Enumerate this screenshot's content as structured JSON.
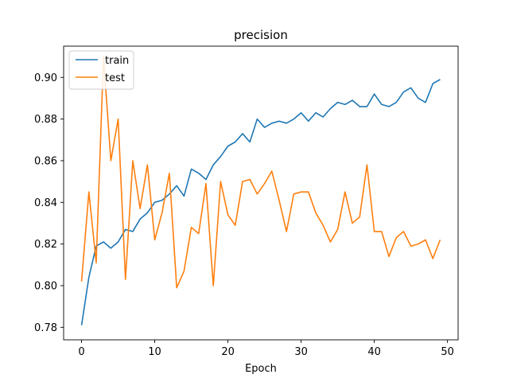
{
  "chart_data": {
    "type": "line",
    "title": "precision",
    "xlabel": "Epoch",
    "ylabel": "",
    "xlim": [
      -2.45,
      51.45
    ],
    "ylim": [
      0.774,
      0.915
    ],
    "xticks": [
      0,
      10,
      20,
      30,
      40,
      50
    ],
    "yticks": [
      0.78,
      0.8,
      0.82,
      0.84,
      0.86,
      0.88,
      0.9
    ],
    "ytick_labels": [
      "0.78",
      "0.80",
      "0.82",
      "0.84",
      "0.86",
      "0.88",
      "0.90"
    ],
    "xtick_labels": [
      "0",
      "10",
      "20",
      "30",
      "40",
      "50"
    ],
    "grid": false,
    "legend_position": "top-left",
    "x": [
      0,
      1,
      2,
      3,
      4,
      5,
      6,
      7,
      8,
      9,
      10,
      11,
      12,
      13,
      14,
      15,
      16,
      17,
      18,
      19,
      20,
      21,
      22,
      23,
      24,
      25,
      26,
      27,
      28,
      29,
      30,
      31,
      32,
      33,
      34,
      35,
      36,
      37,
      38,
      39,
      40,
      41,
      42,
      43,
      44,
      45,
      46,
      47,
      48,
      49
    ],
    "series": [
      {
        "name": "train",
        "color": "#1f77b4",
        "values": [
          0.781,
          0.804,
          0.819,
          0.821,
          0.818,
          0.821,
          0.827,
          0.826,
          0.832,
          0.835,
          0.84,
          0.841,
          0.844,
          0.848,
          0.843,
          0.856,
          0.854,
          0.851,
          0.858,
          0.862,
          0.867,
          0.869,
          0.873,
          0.869,
          0.88,
          0.876,
          0.878,
          0.879,
          0.878,
          0.88,
          0.883,
          0.879,
          0.883,
          0.881,
          0.885,
          0.888,
          0.887,
          0.889,
          0.886,
          0.886,
          0.892,
          0.887,
          0.886,
          0.888,
          0.893,
          0.895,
          0.89,
          0.888,
          0.897,
          0.899
        ]
      },
      {
        "name": "test",
        "color": "#ff7f0e",
        "values": [
          0.802,
          0.845,
          0.811,
          0.91,
          0.86,
          0.88,
          0.803,
          0.86,
          0.837,
          0.858,
          0.822,
          0.835,
          0.854,
          0.799,
          0.807,
          0.828,
          0.825,
          0.849,
          0.8,
          0.85,
          0.834,
          0.829,
          0.85,
          0.851,
          0.844,
          0.849,
          0.855,
          0.841,
          0.826,
          0.844,
          0.845,
          0.845,
          0.835,
          0.829,
          0.821,
          0.827,
          0.845,
          0.83,
          0.833,
          0.858,
          0.826,
          0.826,
          0.814,
          0.823,
          0.826,
          0.819,
          0.82,
          0.822,
          0.813,
          0.822
        ]
      }
    ]
  }
}
